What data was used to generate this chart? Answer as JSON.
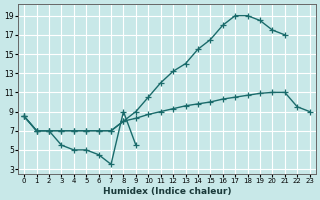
{
  "bg_color": "#c8e8e8",
  "grid_color": "#ffffff",
  "line_color": "#1a6b6b",
  "xlabel": "Humidex (Indice chaleur)",
  "xlim": [
    -0.5,
    23.5
  ],
  "ylim": [
    2.5,
    20.2
  ],
  "xticks": [
    0,
    1,
    2,
    3,
    4,
    5,
    6,
    7,
    8,
    9,
    10,
    11,
    12,
    13,
    14,
    15,
    16,
    17,
    18,
    19,
    20,
    21,
    22,
    23
  ],
  "yticks": [
    3,
    5,
    7,
    9,
    11,
    13,
    15,
    17,
    19
  ],
  "line_upper_x": [
    0,
    1,
    2,
    3,
    4,
    5,
    6,
    7,
    8,
    9,
    10,
    11,
    12,
    13,
    14,
    15,
    16,
    17,
    18,
    19,
    20,
    21
  ],
  "line_upper_y": [
    8.5,
    7.0,
    7.0,
    7.0,
    7.0,
    7.0,
    7.0,
    7.0,
    8.0,
    9.0,
    10.5,
    12.0,
    13.2,
    14.0,
    15.5,
    16.5,
    18.0,
    19.0,
    19.0,
    18.5,
    17.5,
    17.0
  ],
  "line_lower_x": [
    0,
    1,
    2,
    3,
    4,
    5,
    6,
    7,
    8,
    9,
    10,
    11,
    12,
    13,
    14,
    15,
    16,
    17,
    18,
    19,
    20,
    21,
    22,
    23
  ],
  "line_lower_y": [
    8.5,
    7.0,
    7.0,
    7.0,
    7.0,
    7.0,
    7.0,
    7.0,
    8.0,
    8.3,
    8.7,
    9.0,
    9.3,
    9.6,
    9.8,
    10.0,
    10.3,
    10.5,
    10.7,
    10.9,
    11.0,
    11.0,
    9.5,
    9.0
  ],
  "line_short_x": [
    0,
    1,
    2,
    3,
    4,
    5,
    6,
    7,
    8,
    9
  ],
  "line_short_y": [
    8.5,
    7.0,
    7.0,
    5.5,
    5.0,
    5.0,
    4.5,
    3.5,
    9.0,
    5.5
  ]
}
